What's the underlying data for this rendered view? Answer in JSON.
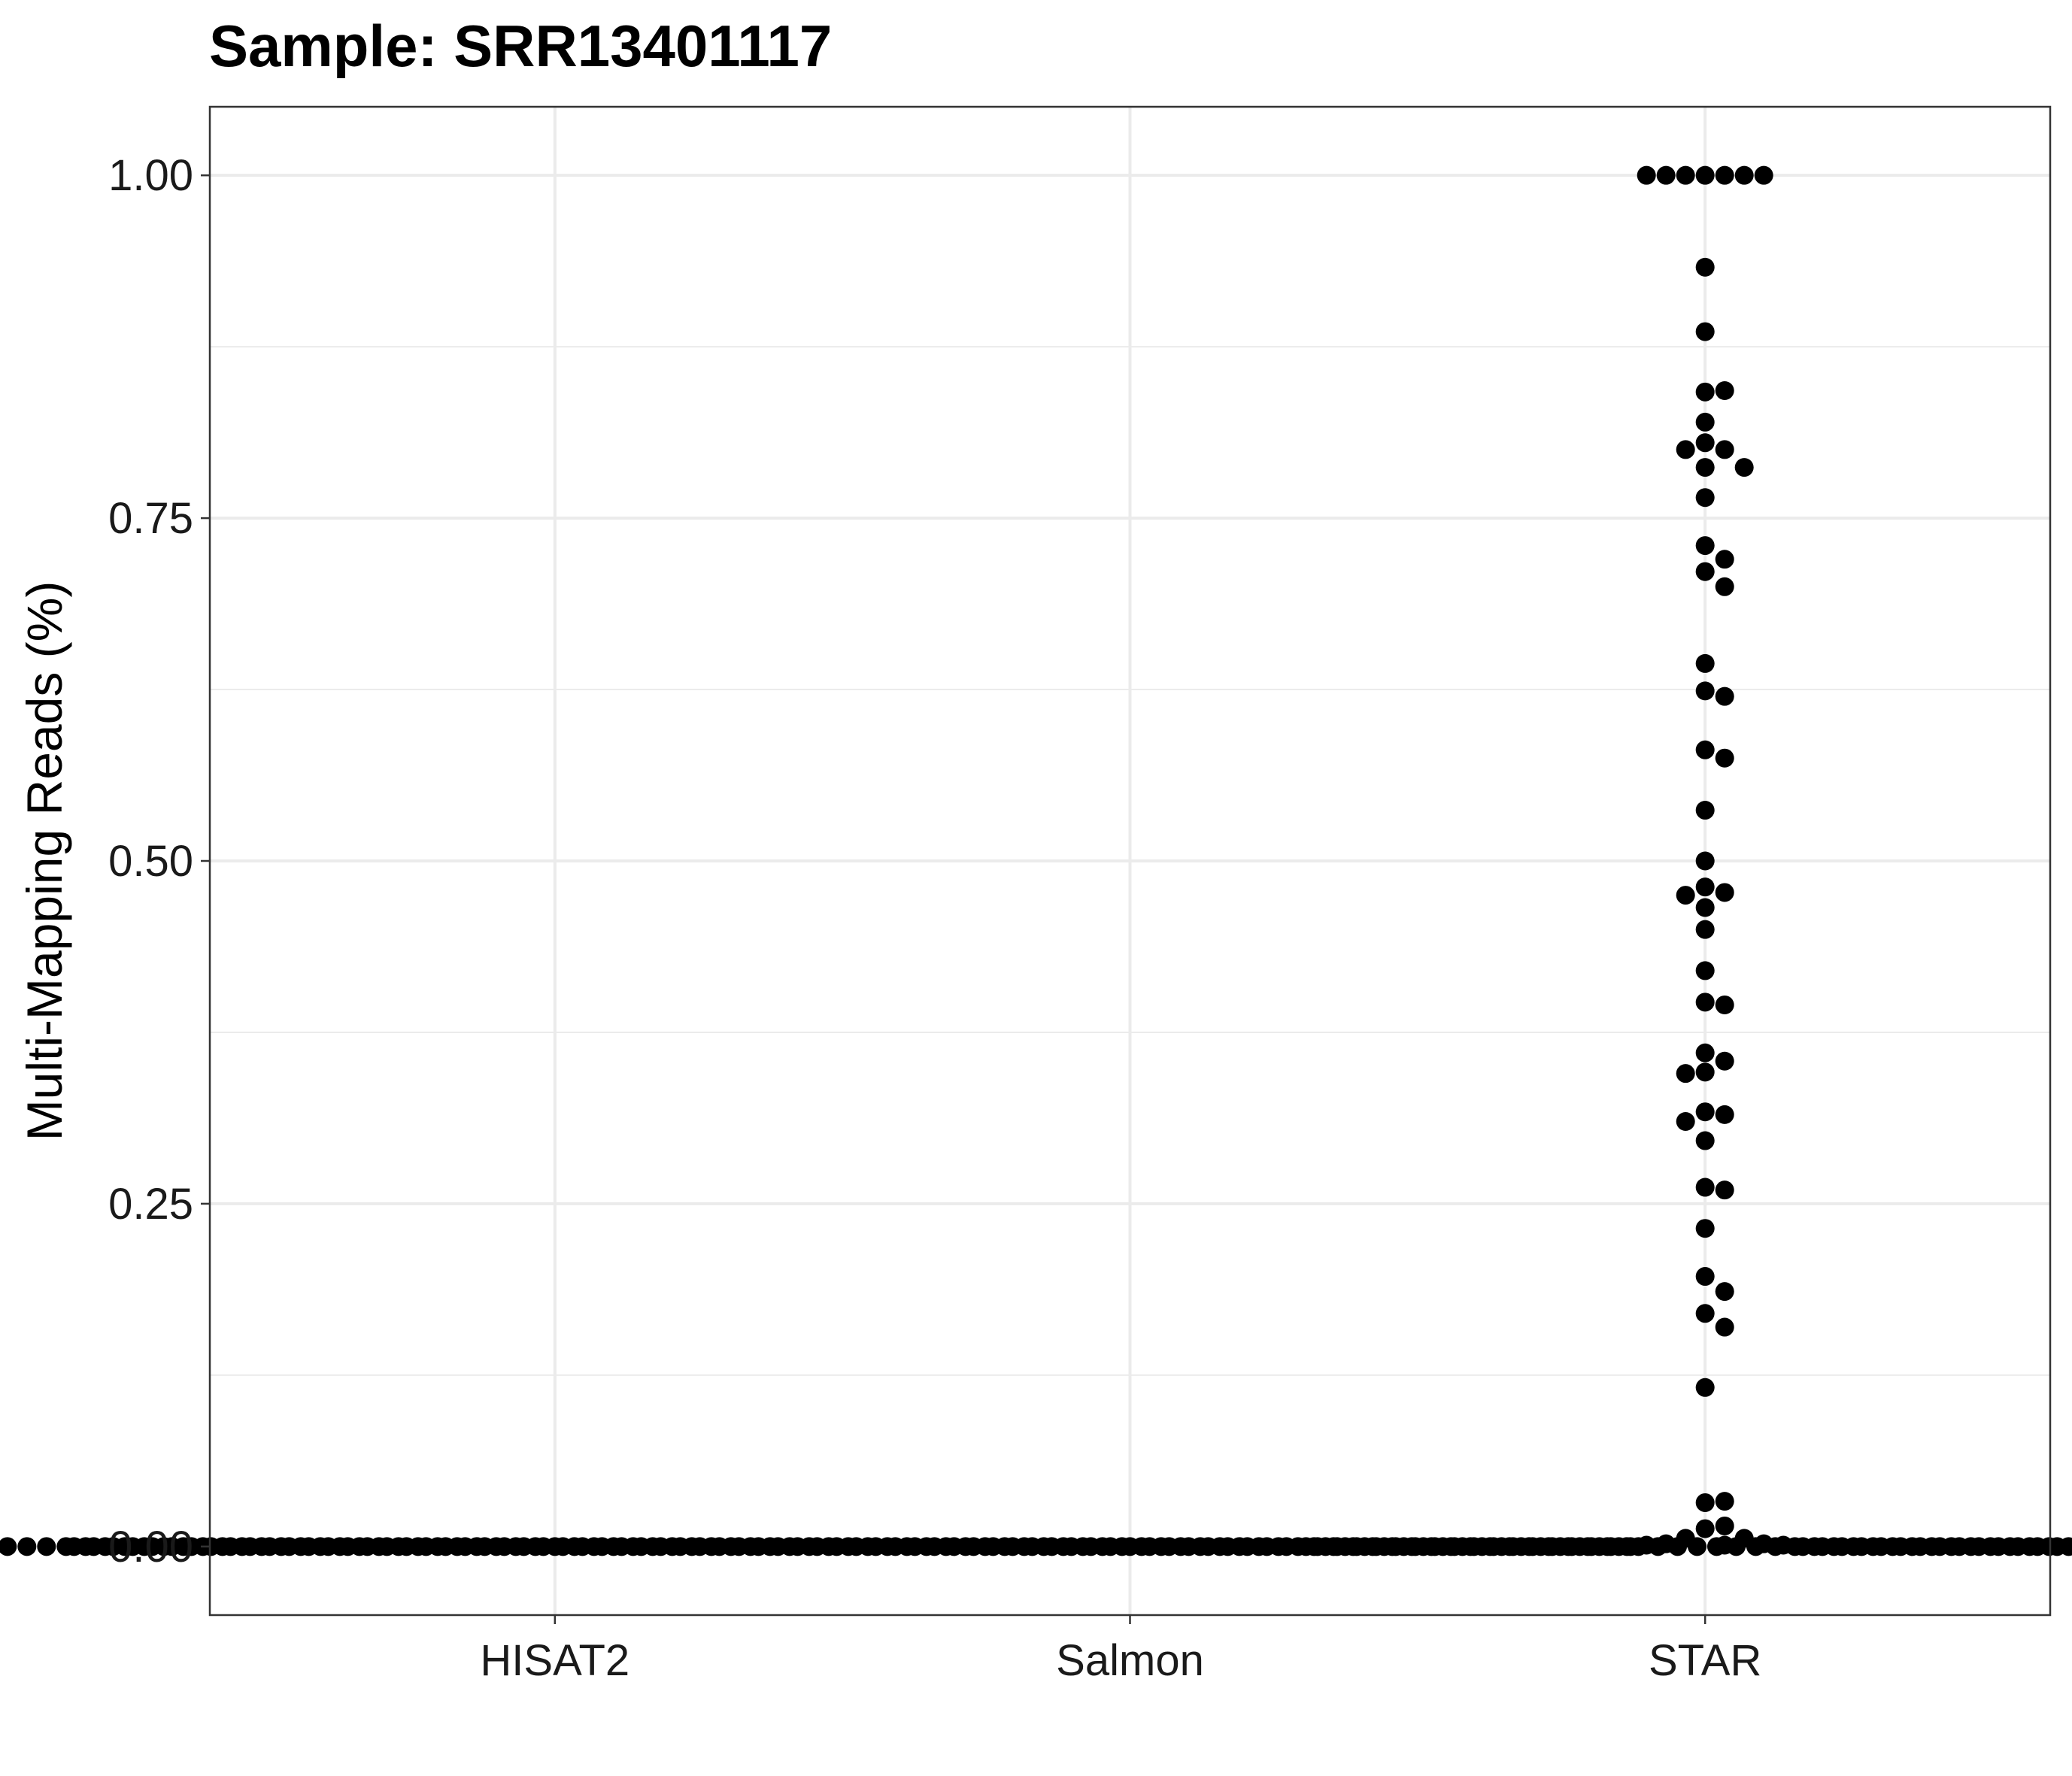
{
  "chart_data": {
    "type": "scatter",
    "title": "Sample: SRR13401117",
    "xlabel": "",
    "ylabel": "Multi-Mapping Reads (%)",
    "categories": [
      "HISAT2",
      "Salmon",
      "STAR"
    ],
    "y_ticks": [
      "0.00",
      "0.25",
      "0.50",
      "0.75",
      "1.00"
    ],
    "ylim": [
      -0.05,
      1.05
    ],
    "grid": true,
    "legend": "none",
    "point_color": "#000000",
    "series": [
      {
        "category": "HISAT2",
        "values": [
          0,
          0,
          0,
          0,
          0,
          0,
          0,
          0,
          0,
          0,
          0,
          0,
          0,
          0,
          0,
          0,
          0,
          0,
          0,
          0,
          0,
          0,
          0,
          0,
          0,
          0,
          0,
          0,
          0,
          0,
          0,
          0,
          0,
          0,
          0,
          0,
          0,
          0,
          0,
          0,
          0,
          0,
          0,
          0,
          0,
          0,
          0,
          0,
          0,
          0,
          0,
          0,
          0,
          0,
          0,
          0,
          0,
          0,
          0,
          0,
          0,
          0,
          0,
          0,
          0,
          0,
          0,
          0,
          0,
          0,
          0,
          0,
          0,
          0,
          0,
          0,
          0,
          0,
          0,
          0,
          0,
          0,
          0,
          0,
          0,
          0,
          0,
          0,
          0,
          0,
          0,
          0,
          0,
          0,
          0,
          0,
          0,
          0,
          0,
          0,
          0,
          0,
          0,
          0,
          0,
          0,
          0,
          0,
          0,
          0
        ]
      },
      {
        "category": "Salmon",
        "values": [
          0,
          0,
          0,
          0,
          0,
          0,
          0,
          0,
          0,
          0,
          0,
          0,
          0,
          0,
          0,
          0,
          0,
          0,
          0,
          0,
          0,
          0,
          0,
          0,
          0,
          0,
          0,
          0,
          0,
          0,
          0,
          0,
          0,
          0,
          0,
          0,
          0,
          0,
          0,
          0,
          0,
          0,
          0,
          0,
          0,
          0,
          0,
          0,
          0,
          0,
          0,
          0,
          0,
          0,
          0,
          0,
          0,
          0,
          0,
          0,
          0,
          0,
          0,
          0,
          0,
          0,
          0,
          0,
          0,
          0,
          0,
          0,
          0,
          0,
          0,
          0,
          0,
          0,
          0,
          0,
          0,
          0,
          0,
          0,
          0,
          0,
          0,
          0,
          0,
          0,
          0,
          0,
          0,
          0,
          0,
          0,
          0,
          0,
          0,
          0,
          0,
          0,
          0,
          0,
          0,
          0,
          0,
          0,
          0,
          0
        ]
      },
      {
        "category": "STAR",
        "values": [
          1.0,
          1.0,
          1.0,
          1.0,
          1.0,
          1.0,
          1.0,
          0.933,
          0.886,
          0.842,
          0.843,
          0.82,
          0.805,
          0.8,
          0.8,
          0.787,
          0.787,
          0.765,
          0.73,
          0.72,
          0.711,
          0.7,
          0.644,
          0.624,
          0.62,
          0.581,
          0.575,
          0.537,
          0.5,
          0.481,
          0.477,
          0.475,
          0.466,
          0.45,
          0.42,
          0.397,
          0.395,
          0.36,
          0.354,
          0.346,
          0.345,
          0.317,
          0.315,
          0.31,
          0.296,
          0.262,
          0.26,
          0.232,
          0.197,
          0.186,
          0.17,
          0.16,
          0.116,
          0.032,
          0.033,
          0.013,
          0.015,
          0.006,
          0.006,
          0.002,
          0.002,
          0.001,
          0.001,
          0.001,
          0,
          0,
          0,
          0,
          0,
          0,
          0,
          0,
          0,
          0,
          0,
          0,
          0,
          0,
          0,
          0,
          0,
          0,
          0,
          0,
          0,
          0,
          0,
          0,
          0,
          0,
          0,
          0,
          0,
          0,
          0,
          0,
          0
        ]
      }
    ]
  }
}
